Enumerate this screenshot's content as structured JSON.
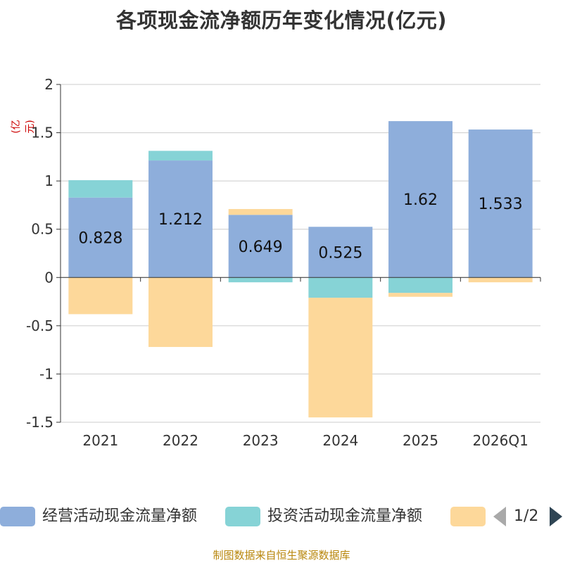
{
  "chart_data": {
    "type": "bar",
    "stacked": true,
    "title": "各项现金流净额历年变化情况(亿元)",
    "ylabel": "(亿元)",
    "xlabel": "",
    "ylim": [
      -1.5,
      2
    ],
    "yticks": [
      "2",
      "1.5",
      "1",
      "0.5",
      "0",
      "-0.5",
      "-1",
      "-1.5"
    ],
    "ytick_values": [
      2,
      1.5,
      1,
      0.5,
      0,
      -0.5,
      -1,
      -1.5
    ],
    "categories": [
      "2021",
      "2022",
      "2023",
      "2024",
      "2025",
      "2026Q1"
    ],
    "grid": true,
    "series": [
      {
        "name": "经营活动现金流量净额",
        "color": "#8eaedb",
        "values": [
          0.828,
          1.212,
          0.649,
          0.525,
          1.62,
          1.533
        ],
        "labels": [
          "0.828",
          "1.212",
          "0.649",
          "0.525",
          "1.62",
          "1.533"
        ]
      },
      {
        "name": "投资活动现金流量净额",
        "color": "#86d3d6",
        "values": [
          0.18,
          0.1,
          -0.05,
          -0.21,
          -0.16,
          0.0
        ]
      },
      {
        "name": "",
        "color": "#fdd89a",
        "values": [
          -0.38,
          -0.72,
          0.06,
          -1.24,
          -0.04,
          -0.05
        ]
      }
    ]
  },
  "legend": {
    "items": [
      {
        "label": "经营活动现金流量净额",
        "color": "#8eaedb"
      },
      {
        "label": "投资活动现金流量净额",
        "color": "#86d3d6"
      },
      {
        "label": "",
        "color": "#fdd89a"
      }
    ],
    "page": "1/2"
  },
  "source": "制图数据来自恒生聚源数据库"
}
